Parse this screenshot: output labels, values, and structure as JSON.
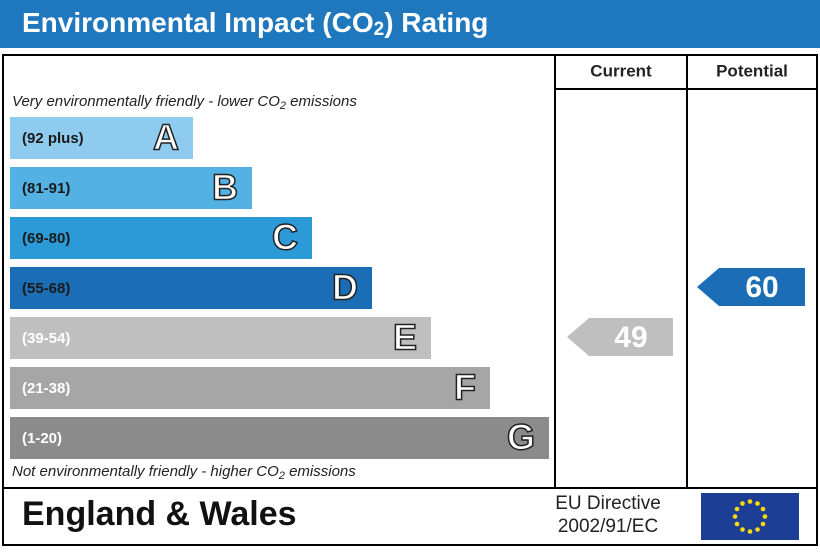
{
  "header": {
    "title": [
      "Environmental Impact (CO",
      "2",
      ") Rating"
    ]
  },
  "columns": {
    "current": "Current",
    "potential": "Potential"
  },
  "notes": {
    "top": [
      "Very environmentally friendly - lower CO",
      "2",
      " emissions"
    ],
    "bottom": [
      "Not environmentally friendly - higher CO",
      "2",
      " emissions"
    ]
  },
  "bands": [
    {
      "range": "(92 plus)",
      "letter": "A",
      "color": "#8fcbee"
    },
    {
      "range": "(81-91)",
      "letter": "B",
      "color": "#53b1e3"
    },
    {
      "range": "(69-80)",
      "letter": "C",
      "color": "#2d9ad8"
    },
    {
      "range": "(55-68)",
      "letter": "D",
      "color": "#1b6eb6"
    },
    {
      "range": "(39-54)",
      "letter": "E",
      "color": "#bfbfbf"
    },
    {
      "range": "(21-38)",
      "letter": "F",
      "color": "#a6a6a6"
    },
    {
      "range": "(1-20)",
      "letter": "G",
      "color": "#8b8b8b"
    }
  ],
  "ratings": {
    "current": 49,
    "potential": 60
  },
  "footer": {
    "region": "England & Wales",
    "directive": [
      "EU Directive",
      "2002/91/EC"
    ]
  }
}
